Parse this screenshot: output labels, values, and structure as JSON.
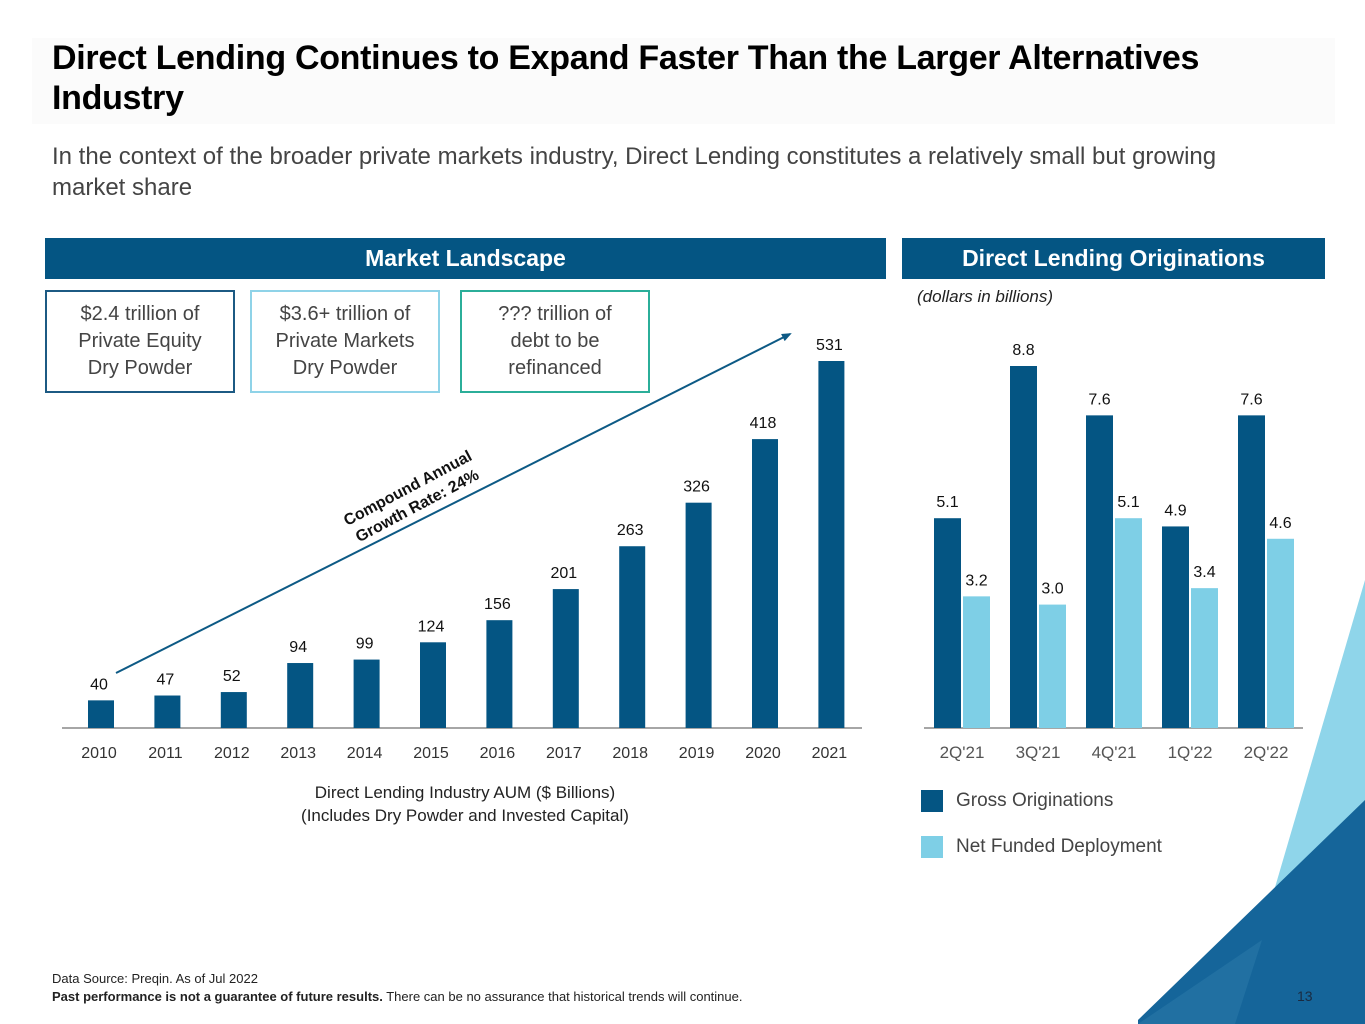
{
  "title": "Direct Lending Continues to Expand Faster Than the Larger Alternatives Industry",
  "subtitle": "In the context of the broader private markets industry, Direct Lending constitutes a relatively small but growing market share",
  "colors": {
    "brand_dark": "#045583",
    "brand_light": "#7ecfe6",
    "teal": "#2bae99",
    "box_dark_border": "#1c5a83",
    "box_light_border": "#8fd3e8"
  },
  "left_panel": {
    "header": "Market Landscape",
    "stat_boxes": [
      {
        "lines": [
          "$2.4 trillion of",
          "Private Equity",
          "Dry Powder"
        ]
      },
      {
        "lines": [
          "$3.6+ trillion of",
          "Private Markets",
          "Dry Powder"
        ]
      },
      {
        "lines": [
          "??? trillion of",
          "debt to be",
          "refinanced"
        ]
      }
    ],
    "cagr_annotation": {
      "line1": "Compound Annual",
      "line2": "Growth Rate: 24%"
    },
    "caption": {
      "line1": "Direct Lending Industry AUM ($ Billions)",
      "line2": "(Includes Dry Powder and Invested Capital)"
    }
  },
  "right_panel": {
    "header": "Direct Lending Originations",
    "units_note": "(dollars in billions)",
    "legend": [
      {
        "label": "Gross Originations",
        "color": "#045583"
      },
      {
        "label": "Net Funded Deployment",
        "color": "#7ecfe6"
      }
    ]
  },
  "footer": {
    "source": "Data Source: Preqin. As of Jul 2022",
    "disclaimer_bold": "Past performance is not a guarantee of future results.",
    "disclaimer_rest": " There can be no assurance that historical trends will continue.",
    "page_number": "13"
  },
  "chart_data": [
    {
      "type": "bar",
      "title": "Direct Lending Industry AUM ($ Billions)",
      "subtitle": "(Includes Dry Powder and Invested Capital)",
      "xlabel": "",
      "ylabel": "",
      "categories": [
        "2010",
        "2011",
        "2012",
        "2013",
        "2014",
        "2015",
        "2016",
        "2017",
        "2018",
        "2019",
        "2020",
        "2021"
      ],
      "values": [
        40,
        47,
        52,
        94,
        99,
        124,
        156,
        201,
        263,
        326,
        418,
        531
      ],
      "ylim": [
        0,
        531
      ],
      "grid": false,
      "annotations": [
        "Compound Annual Growth Rate: 24%"
      ],
      "color": "#045583"
    },
    {
      "type": "bar",
      "title": "Direct Lending Originations",
      "subtitle": "(dollars in billions)",
      "categories": [
        "2Q'21",
        "3Q'21",
        "4Q'21",
        "1Q'22",
        "2Q'22"
      ],
      "series": [
        {
          "name": "Gross Originations",
          "values": [
            5.1,
            8.8,
            7.6,
            4.9,
            7.6
          ],
          "labels": [
            "5.1",
            "8.8",
            "7.6",
            "4.9",
            "7.6"
          ],
          "color": "#045583"
        },
        {
          "name": "Net Funded Deployment",
          "values": [
            3.2,
            3.0,
            5.1,
            3.4,
            4.6
          ],
          "labels": [
            "3.2",
            "3.0",
            "5.1",
            "3.4",
            "4.6"
          ],
          "color": "#7ecfe6"
        }
      ],
      "ylim": [
        0,
        8.8
      ],
      "grid": false,
      "legend": "bottom-left"
    }
  ]
}
